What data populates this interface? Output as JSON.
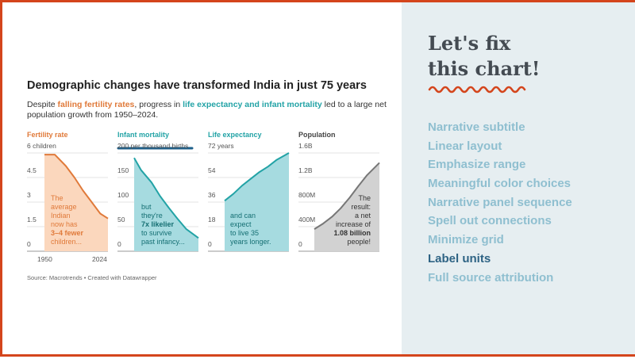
{
  "chart": {
    "title": "Demographic changes have transformed India in just 75 years",
    "subtitle": {
      "pre": "Despite ",
      "hl1": "falling fertility rates",
      "mid": ", progress in ",
      "hl2": "life expectancy and infant mortality",
      "post": " led to a large net population growth from 1950–2024."
    },
    "source": "Source: Macrotrends • Created with Datawrapper"
  },
  "chart_data": [
    {
      "type": "area",
      "title": "Fertility rate",
      "units": "children",
      "x": [
        1950,
        1962,
        1975,
        1985,
        1995,
        2005,
        2015,
        2024
      ],
      "values": [
        5.9,
        5.9,
        5.2,
        4.5,
        3.7,
        3.0,
        2.3,
        2.0
      ],
      "ylim": [
        0,
        6
      ],
      "ticks": [
        "6 children",
        "4.5",
        "3",
        "1.5",
        "0"
      ],
      "xticks": [
        "1950",
        "2024"
      ],
      "color": "#e07a3a",
      "fill": "#fbd7bd",
      "annotation": [
        "The",
        "average",
        "Indian",
        "now has",
        "3–4 fewer",
        "children..."
      ]
    },
    {
      "type": "area",
      "title": "Infant mortality",
      "units": "per thousand births",
      "x": [
        1950,
        1958,
        1970,
        1980,
        1990,
        2000,
        2010,
        2024
      ],
      "values": [
        190,
        165,
        140,
        112,
        88,
        66,
        45,
        27
      ],
      "ylim": [
        0,
        200
      ],
      "ticks": [
        "200 per thousand births",
        "150",
        "100",
        "50",
        "0"
      ],
      "color": "#23a3a6",
      "fill": "#a6dbe0",
      "annotation": [
        "but",
        "they're",
        "7x likelier",
        "to survive",
        "past infancy..."
      ]
    },
    {
      "type": "area",
      "title": "Life expectancy",
      "units": "years",
      "x": [
        1950,
        1960,
        1970,
        1980,
        1990,
        2000,
        2010,
        2024
      ],
      "values": [
        37,
        42,
        48,
        53,
        58,
        62,
        67,
        72
      ],
      "ylim": [
        0,
        72
      ],
      "ticks": [
        "72 years",
        "54",
        "36",
        "18",
        "0"
      ],
      "color": "#23a3a6",
      "fill": "#a6dbe0",
      "annotation": [
        "and can",
        "expect",
        "to live 35",
        "years longer."
      ]
    },
    {
      "type": "area",
      "title": "Population",
      "units": "",
      "x": [
        1950,
        1960,
        1970,
        1980,
        1990,
        2000,
        2010,
        2024
      ],
      "values": [
        0.36,
        0.45,
        0.56,
        0.7,
        0.87,
        1.06,
        1.24,
        1.44
      ],
      "ylim": [
        0,
        1.6
      ],
      "ticks": [
        "1.6B",
        "1.2B",
        "800M",
        "400M",
        "0"
      ],
      "color": "#777777",
      "fill": "#d2d2d2",
      "annotation": [
        "The",
        "result:",
        "a net",
        "increase of",
        "1.08 billion",
        "people!"
      ]
    }
  ],
  "sidebar": {
    "heading_line1": "Let's fix",
    "heading_line2": "this chart!",
    "items": [
      "Narrative subtitle",
      "Linear layout",
      "Emphasize range",
      "Meaningful color choices",
      "Narrative panel sequence",
      "Spell out connections",
      "Minimize grid",
      "Label units",
      "Full source attribution"
    ],
    "active_item": "Label units",
    "accent_color": "#d4451c"
  }
}
